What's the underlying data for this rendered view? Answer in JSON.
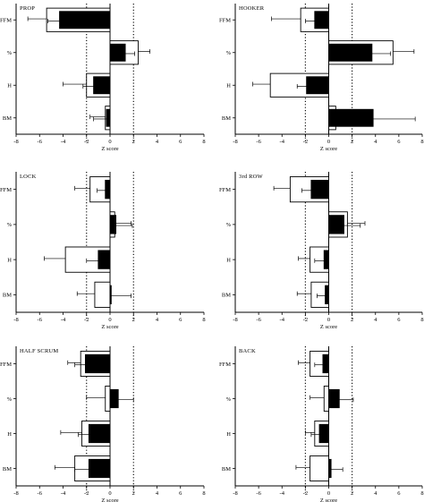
{
  "chart_data": [
    {
      "type": "bar",
      "title": "PROP",
      "xlabel": "Z score",
      "xlim": [
        -8,
        8
      ],
      "xticks": [
        "-8",
        "-6",
        "-4",
        "-2",
        "0",
        "2",
        "4",
        "6",
        "8"
      ],
      "reference_lines": [
        -2,
        2
      ],
      "categories": [
        "FFM",
        "%",
        "H",
        "BM"
      ],
      "series": [
        {
          "values": [
            -5.4,
            2.4,
            -2.0,
            -0.4
          ],
          "errors": [
            1.6,
            1.0,
            2.0,
            1.3
          ]
        },
        {
          "values": [
            -4.3,
            1.3,
            -1.4,
            -0.3
          ],
          "errors": [
            1.0,
            0.8,
            0.9,
            1.1
          ]
        }
      ]
    },
    {
      "type": "bar",
      "title": "HOOKER",
      "xlabel": "Z score",
      "xlim": [
        -8,
        8
      ],
      "xticks": [
        "-8",
        "-6",
        "-4",
        "-2",
        "0",
        "2",
        "4",
        "6",
        "8"
      ],
      "reference_lines": [
        -2,
        2
      ],
      "categories": [
        "FFM",
        "%",
        "H",
        "BM"
      ],
      "series": [
        {
          "values": [
            -2.4,
            5.5,
            -5.0,
            0.6
          ],
          "errors": [
            2.5,
            1.8,
            1.5,
            1.0
          ]
        },
        {
          "values": [
            -1.2,
            3.7,
            -1.9,
            3.8
          ],
          "errors": [
            0.8,
            1.6,
            0.8,
            3.6
          ]
        }
      ]
    },
    {
      "type": "bar",
      "title": "LOCK",
      "xlabel": "Z score",
      "xlim": [
        -8,
        8
      ],
      "xticks": [
        "-8",
        "-6",
        "-4",
        "-2",
        "0",
        "2",
        "4",
        "6",
        "8"
      ],
      "reference_lines": [
        -2,
        2
      ],
      "categories": [
        "FFM",
        "%",
        "H",
        "BM"
      ],
      "series": [
        {
          "values": [
            -1.7,
            0.4,
            -3.8,
            -1.3
          ],
          "errors": [
            1.3,
            1.4,
            1.8,
            1.5
          ]
        },
        {
          "values": [
            -0.4,
            0.5,
            -1.0,
            0.1
          ],
          "errors": [
            0.7,
            1.4,
            1.0,
            1.7
          ]
        }
      ]
    },
    {
      "type": "bar",
      "title": "3rd ROW",
      "xlabel": "Z score",
      "xlim": [
        -8,
        8
      ],
      "xticks": [
        "-8",
        "-6",
        "-4",
        "-2",
        "0",
        "2",
        "4",
        "6",
        "8"
      ],
      "reference_lines": [
        -2,
        2
      ],
      "categories": [
        "FFM",
        "%",
        "H",
        "BM"
      ],
      "series": [
        {
          "values": [
            -3.3,
            1.6,
            -1.6,
            -1.5
          ],
          "errors": [
            1.4,
            1.5,
            1.0,
            1.2
          ]
        },
        {
          "values": [
            -1.5,
            1.3,
            -0.4,
            -0.3
          ],
          "errors": [
            0.8,
            1.4,
            0.8,
            0.7
          ]
        }
      ]
    },
    {
      "type": "bar",
      "title": "HALF SCRUM",
      "xlabel": "Z score",
      "xlim": [
        -8,
        8
      ],
      "xticks": [
        "-8",
        "-6",
        "-4",
        "-2",
        "0",
        "2",
        "4",
        "6",
        "8"
      ],
      "reference_lines": [
        -2,
        2
      ],
      "categories": [
        "FFM",
        "%",
        "H",
        "BM"
      ],
      "series": [
        {
          "values": [
            -2.5,
            -0.4,
            -2.4,
            -3.0
          ],
          "errors": [
            1.1,
            1.6,
            1.8,
            1.7
          ]
        },
        {
          "values": [
            -2.1,
            0.7,
            -1.8,
            -1.8
          ],
          "errors": [
            0.9,
            1.3,
            0.9,
            1.2
          ]
        }
      ]
    },
    {
      "type": "bar",
      "title": "BACK",
      "xlabel": "Z score",
      "xlim": [
        -8,
        8
      ],
      "xticks": [
        "-8",
        "-6",
        "-4",
        "-2",
        "0",
        "2",
        "4",
        "6",
        "8"
      ],
      "reference_lines": [
        -2,
        2
      ],
      "categories": [
        "FFM",
        "%",
        "H",
        "BM"
      ],
      "series": [
        {
          "values": [
            -1.6,
            -0.4,
            -1.2,
            -1.6
          ],
          "errors": [
            1.0,
            1.2,
            0.8,
            1.2
          ]
        },
        {
          "values": [
            -0.5,
            0.9,
            -0.8,
            0.2
          ],
          "errors": [
            0.7,
            1.2,
            0.7,
            1.0
          ]
        }
      ]
    }
  ]
}
